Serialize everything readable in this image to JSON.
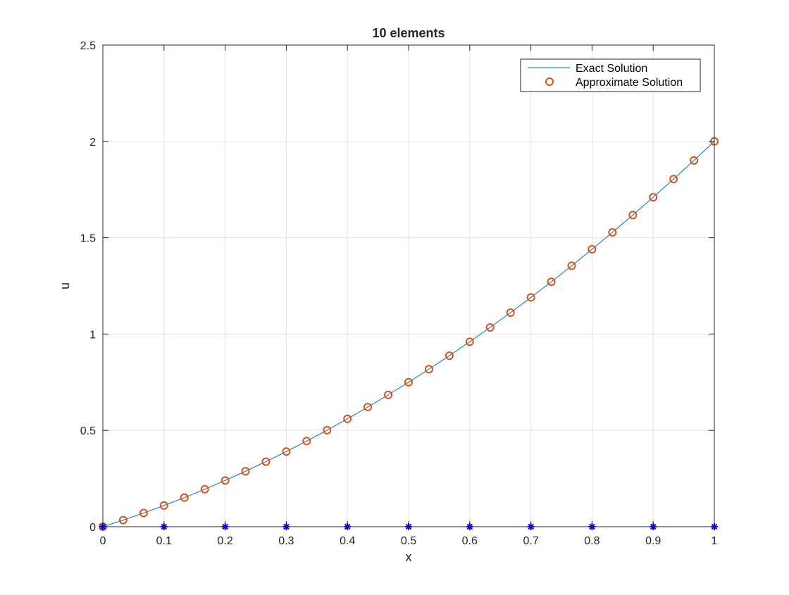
{
  "chart_data": {
    "type": "line",
    "title": "10 elements",
    "xlabel": "x",
    "ylabel": "u",
    "xlim": [
      0,
      1
    ],
    "ylim": [
      0,
      2.5
    ],
    "grid": true,
    "legend_placement": "top-right",
    "x_ticks": [
      "0",
      "0.1",
      "0.2",
      "0.3",
      "0.4",
      "0.5",
      "0.6",
      "0.7",
      "0.8",
      "0.9",
      "1"
    ],
    "y_ticks": [
      "0",
      "0.5",
      "1",
      "1.5",
      "2",
      "2.5"
    ],
    "series": [
      {
        "name": "Exact Solution",
        "style": "line",
        "color": "#0072BD",
        "x": [
          0,
          0.0333,
          0.0667,
          0.1,
          0.1333,
          0.1667,
          0.2,
          0.2333,
          0.2667,
          0.3,
          0.3333,
          0.3667,
          0.4,
          0.4333,
          0.4667,
          0.5,
          0.5333,
          0.5667,
          0.6,
          0.6333,
          0.6667,
          0.7,
          0.7333,
          0.7667,
          0.8,
          0.8333,
          0.8667,
          0.9,
          0.9333,
          0.9667,
          1
        ],
        "y": [
          0,
          0.0344,
          0.0711,
          0.11,
          0.1511,
          0.1944,
          0.24,
          0.2878,
          0.3378,
          0.39,
          0.4444,
          0.5011,
          0.56,
          0.6211,
          0.6844,
          0.75,
          0.8178,
          0.8878,
          0.96,
          1.0344,
          1.1111,
          1.19,
          1.2711,
          1.3544,
          1.44,
          1.5278,
          1.6178,
          1.71,
          1.8044,
          1.9011,
          2
        ]
      },
      {
        "name": "Approximate Solution",
        "style": "circle-markers",
        "color": "#D95319",
        "x": [
          0,
          0.0333,
          0.0667,
          0.1,
          0.1333,
          0.1667,
          0.2,
          0.2333,
          0.2667,
          0.3,
          0.3333,
          0.3667,
          0.4,
          0.4333,
          0.4667,
          0.5,
          0.5333,
          0.5667,
          0.6,
          0.6333,
          0.6667,
          0.7,
          0.7333,
          0.7667,
          0.8,
          0.8333,
          0.8667,
          0.9,
          0.9333,
          0.9667,
          1
        ],
        "y": [
          0,
          0.0344,
          0.0711,
          0.11,
          0.1511,
          0.1944,
          0.24,
          0.2878,
          0.3378,
          0.39,
          0.4444,
          0.5011,
          0.56,
          0.6211,
          0.6844,
          0.75,
          0.8178,
          0.8878,
          0.96,
          1.0344,
          1.1111,
          1.19,
          1.2711,
          1.3544,
          1.44,
          1.5278,
          1.6178,
          1.71,
          1.8044,
          1.9011,
          2
        ]
      },
      {
        "style": "star-markers",
        "color": "#0000FF",
        "x": [
          0,
          0.1,
          0.2,
          0.3,
          0.4,
          0.5,
          0.6,
          0.7,
          0.8,
          0.9,
          1
        ],
        "y": [
          0,
          0,
          0,
          0,
          0,
          0,
          0,
          0,
          0,
          0,
          0
        ]
      }
    ]
  }
}
